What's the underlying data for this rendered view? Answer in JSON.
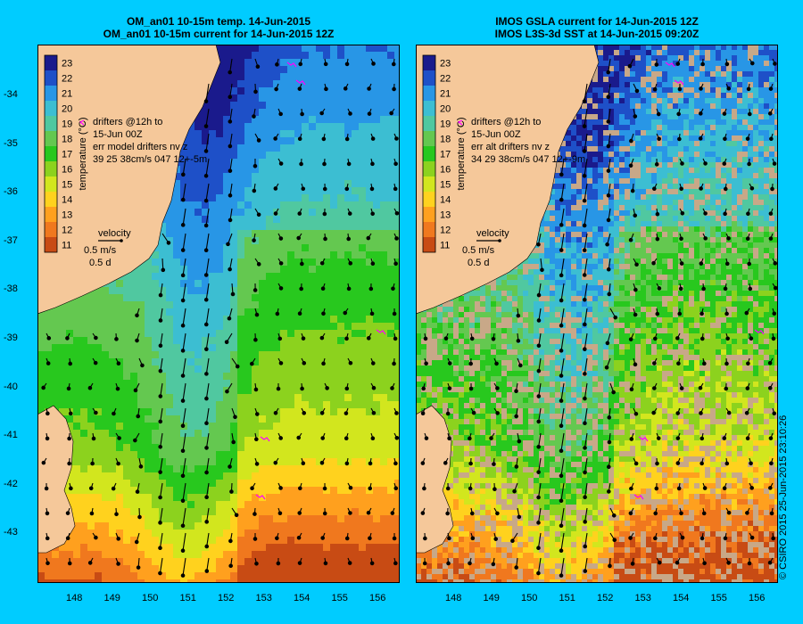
{
  "left_panel": {
    "title_line1": "OM_an01 10-15m temp. 14-Jun-2015",
    "title_line2": "OM_an01 10-15m current for 14-Jun-2015 12Z",
    "colorbar_label": "temperature (°C)",
    "drifters_line1": "drifters @12h to",
    "drifters_line2": "15-Jun 00Z",
    "drifters_line3": "err model drifters nv z",
    "drifters_line4": "39   25     38cm/s 047 12+-5m",
    "velocity_label": "velocity",
    "velocity_scale": "0.5 m/s",
    "velocity_time": "0.5 d"
  },
  "right_panel": {
    "title_line1": "IMOS GSLA current for 14-Jun-2015 12Z",
    "title_line2": "IMOS L3S-3d SST at 14-Jun-2015 09:20Z",
    "colorbar_label": "temperature (°C)",
    "drifters_line1": "drifters @12h to",
    "drifters_line2": "15-Jun 00Z",
    "drifters_line3": "err alt drifters nv z",
    "drifters_line4": "34 29 38cm/s 047 12+-9m",
    "velocity_label": "velocity",
    "velocity_scale": "0.5 m/s",
    "velocity_time": "0.5 d"
  },
  "colorbar_ticks": [
    "23",
    "22",
    "21",
    "20",
    "19",
    "18",
    "17",
    "16",
    "15",
    "14",
    "13",
    "12",
    "11"
  ],
  "lat_labels": [
    "-34",
    "-35",
    "-36",
    "-37",
    "-38",
    "-39",
    "-40",
    "-41",
    "-42",
    "-43"
  ],
  "lon_labels": [
    "148",
    "149",
    "150",
    "151",
    "152",
    "153",
    "154",
    "155",
    "156"
  ],
  "copyright": "© CSIRO 2015   25-Jun-2015 23:10:26",
  "colors": {
    "background": "#00ccff",
    "land": "#f5c89a",
    "no_data": "#c8a888",
    "arrow": "#000000",
    "drifter": "#ff00ff"
  },
  "colormap": [
    "#1a1a8c",
    "#1e50c8",
    "#2896e6",
    "#3cbed2",
    "#50c8a0",
    "#64c850",
    "#28c81e",
    "#8cd21e",
    "#d2e61e",
    "#ffd21e",
    "#ffa01e",
    "#f0781e",
    "#c84b14"
  ]
}
